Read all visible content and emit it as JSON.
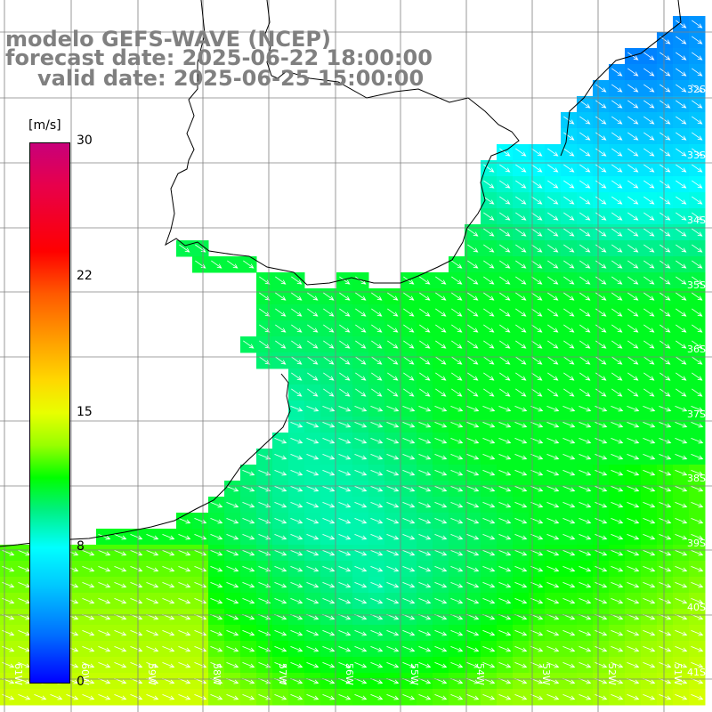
{
  "title": {
    "line1": "modelo GEFS-WAVE (NCEP)",
    "line2": "forecast date: 2025-06-22 18:00:00",
    "line3": "valid date: 2025-06-25 15:00:00"
  },
  "colorbar": {
    "unit": "[m/s]",
    "ticks": [
      "30",
      "22",
      "15",
      "8",
      "0"
    ],
    "colors": [
      "#c8007a",
      "#ff0000",
      "#ffd800",
      "#00ff00",
      "#00ffff",
      "#0000ff"
    ]
  },
  "axes": {
    "lat_labels": [
      "32S",
      "33S",
      "34S",
      "35S",
      "36S",
      "37S",
      "38S",
      "39S",
      "40S",
      "41S"
    ],
    "lon_labels": [
      "61W",
      "60W",
      "59W",
      "58W",
      "57W",
      "56W",
      "55W",
      "54W",
      "53W",
      "52W",
      "51W"
    ]
  },
  "colors": {
    "land": "#ffffff",
    "coastline": "#000000",
    "grid": "#808080",
    "arrows": "#ffffff"
  }
}
